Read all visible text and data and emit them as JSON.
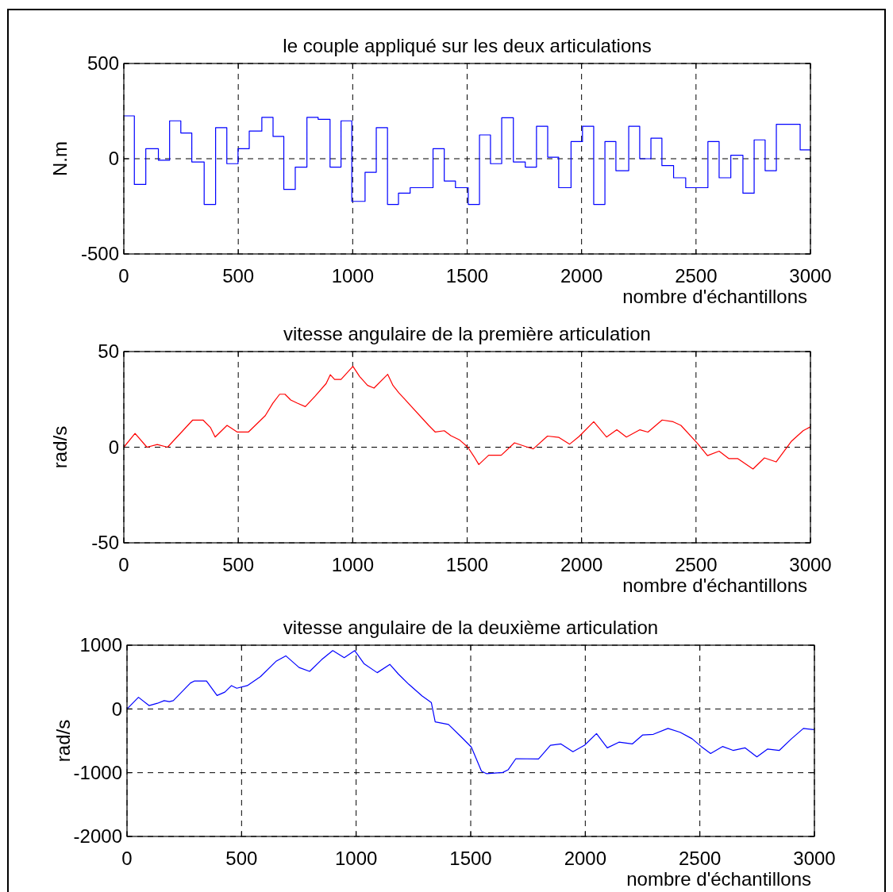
{
  "chart_data": [
    {
      "type": "step",
      "title": "le couple appliqué sur les deux articulations",
      "xlabel": "nombre d'échantillons",
      "ylabel": "N.m",
      "xlim": [
        0,
        3000
      ],
      "xticks": [
        0,
        500,
        1000,
        1500,
        2000,
        2500,
        3000
      ],
      "ylim": [
        -500,
        500
      ],
      "yticks": [
        -500,
        0,
        500
      ],
      "grid": true,
      "x": [
        0,
        46,
        96,
        151,
        200,
        249,
        297,
        351,
        401,
        450,
        499,
        548,
        603,
        652,
        699,
        749,
        800,
        849,
        901,
        949,
        996,
        1054,
        1103,
        1152,
        1200,
        1251,
        1351,
        1400,
        1449,
        1505,
        1554,
        1602,
        1651,
        1702,
        1754,
        1803,
        1852,
        1900,
        1954,
        2004,
        2053,
        2102,
        2150,
        2206,
        2254,
        2303,
        2351,
        2402,
        2455,
        2552,
        2601,
        2652,
        2705,
        2754,
        2802,
        2851,
        2955,
        3000
      ],
      "series": [
        {
          "color": "#0000ff",
          "values": [
            225,
            -135,
            53,
            -8,
            199,
            135,
            -17,
            -240,
            163,
            -26,
            53,
            145,
            217,
            117,
            -161,
            -44,
            217,
            207,
            -44,
            199,
            -224,
            -71,
            163,
            -240,
            -181,
            -152,
            53,
            -117,
            -152,
            -240,
            125,
            -26,
            215,
            -17,
            -44,
            170,
            8,
            -152,
            90,
            170,
            -240,
            90,
            -63,
            170,
            0,
            108,
            -36,
            -100,
            -152,
            90,
            -100,
            18,
            -181,
            99,
            -63,
            181,
            46,
            46
          ]
        }
      ]
    },
    {
      "type": "line",
      "title": "vitesse angulaire de la première articulation",
      "xlabel": "nombre d'échantillons",
      "ylabel": "rad/s",
      "xlim": [
        0,
        3000
      ],
      "xticks": [
        0,
        500,
        1000,
        1500,
        2000,
        2500,
        3000
      ],
      "ylim": [
        -50,
        50
      ],
      "yticks": [
        -50,
        0,
        50
      ],
      "grid": true,
      "x": [
        0,
        49,
        101,
        146,
        191,
        301,
        346,
        379,
        399,
        451,
        496,
        544,
        618,
        651,
        681,
        704,
        729,
        758,
        793,
        836,
        884,
        902,
        921,
        949,
        1001,
        1030,
        1065,
        1093,
        1153,
        1176,
        1202,
        1332,
        1361,
        1400,
        1429,
        1468,
        1503,
        1530,
        1551,
        1594,
        1649,
        1707,
        1759,
        1789,
        1851,
        1901,
        1948,
        1989,
        2053,
        2070,
        2109,
        2154,
        2196,
        2255,
        2290,
        2352,
        2400,
        2434,
        2507,
        2550,
        2601,
        2644,
        2683,
        2749,
        2799,
        2850,
        2916,
        2968,
        3000
      ],
      "series": [
        {
          "color": "#ff0000",
          "values": [
            0,
            7.2,
            0,
            1.4,
            0,
            14.2,
            14.2,
            10.2,
            5.3,
            11.4,
            7.9,
            7.9,
            16.5,
            23,
            27.7,
            27.7,
            24.7,
            23,
            21.2,
            26.7,
            33.3,
            37.9,
            35.4,
            35.4,
            42.3,
            37,
            32.3,
            30.9,
            38.1,
            32.3,
            28.4,
            11.4,
            7.9,
            8.6,
            6,
            3.7,
            0,
            -4.9,
            -9.1,
            -4.2,
            -4.2,
            2.3,
            0.2,
            -0.9,
            5.8,
            5.1,
            1.6,
            5.6,
            13.3,
            10.9,
            5.3,
            9.1,
            5.3,
            9.1,
            7.9,
            14.2,
            13.3,
            11.4,
            1.9,
            -4.4,
            -2.1,
            -6,
            -6,
            -11.4,
            -5.6,
            -7.7,
            3,
            8.6,
            10.7
          ]
        }
      ]
    },
    {
      "type": "line",
      "title": "vitesse angulaire de la deuxième articulation",
      "xlabel": "nombre d'échantillons",
      "ylabel": "rad/s",
      "xlim": [
        0,
        3000
      ],
      "xticks": [
        0,
        500,
        1000,
        1500,
        2000,
        2500,
        3000
      ],
      "ylim": [
        -2000,
        1000
      ],
      "yticks": [
        -2000,
        -1000,
        0,
        1000
      ],
      "grid": true,
      "x": [
        0,
        50,
        96,
        133,
        162,
        185,
        202,
        277,
        295,
        347,
        393,
        427,
        456,
        479,
        525,
        583,
        652,
        693,
        751,
        797,
        849,
        898,
        948,
        994,
        1034,
        1092,
        1147,
        1184,
        1230,
        1288,
        1328,
        1345,
        1403,
        1461,
        1503,
        1547,
        1570,
        1640,
        1663,
        1697,
        1796,
        1848,
        1894,
        1946,
        1997,
        2049,
        2096,
        2147,
        2205,
        2251,
        2297,
        2361,
        2414,
        2466,
        2506,
        2547,
        2599,
        2645,
        2697,
        2749,
        2795,
        2847,
        2900,
        2952,
        2998
      ],
      "series": [
        {
          "color": "#0000ff",
          "values": [
            0,
            183,
            53,
            89,
            130,
            114,
            130,
            407,
            439,
            439,
            211,
            264,
            366,
            325,
            366,
            508,
            752,
            833,
            650,
            589,
            772,
            915,
            805,
            915,
            711,
            569,
            699,
            549,
            386,
            203,
            102,
            -203,
            -244,
            -447,
            -600,
            -976,
            -1016,
            -996,
            -955,
            -780,
            -785,
            -569,
            -549,
            -671,
            -569,
            -386,
            -610,
            -521,
            -549,
            -407,
            -398,
            -305,
            -366,
            -467,
            -589,
            -699,
            -589,
            -650,
            -610,
            -752,
            -630,
            -650,
            -467,
            -305,
            -325
          ]
        }
      ]
    }
  ]
}
